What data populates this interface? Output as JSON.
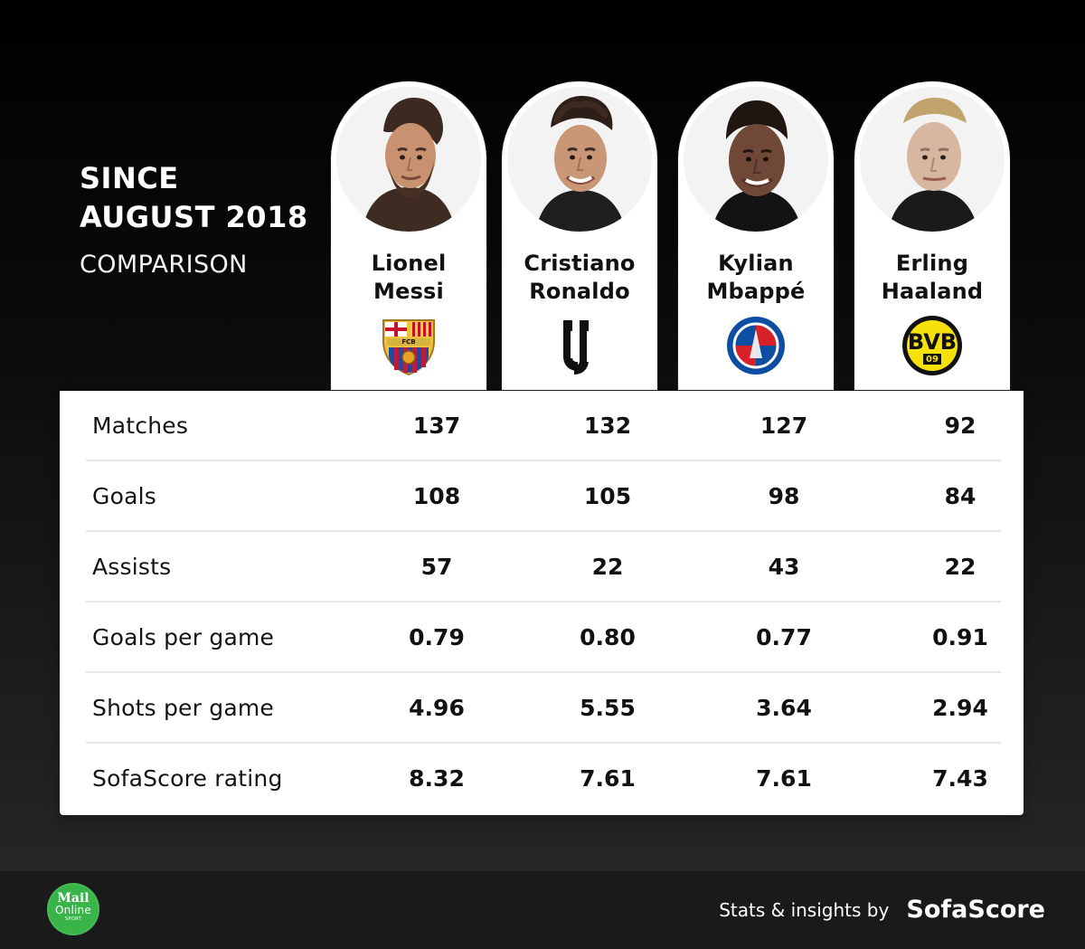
{
  "header": {
    "title_lines": [
      "SINCE",
      "AUGUST 2018"
    ],
    "subtitle": "COMPARISON"
  },
  "players": [
    {
      "name_lines": [
        "Lionel",
        "Messi"
      ],
      "portrait_icon": "lionel-messi-portrait-icon",
      "club_icon": "barcelona-crest-icon"
    },
    {
      "name_lines": [
        "Cristiano",
        "Ronaldo"
      ],
      "portrait_icon": "cristiano-ronaldo-portrait-icon",
      "club_icon": "juventus-crest-icon"
    },
    {
      "name_lines": [
        "Kylian",
        "Mbappé"
      ],
      "portrait_icon": "kylian-mbappe-portrait-icon",
      "club_icon": "psg-crest-icon"
    },
    {
      "name_lines": [
        "Erling",
        "Haaland"
      ],
      "portrait_icon": "erling-haaland-portrait-icon",
      "club_icon": "dortmund-crest-icon"
    }
  ],
  "chart_data": {
    "type": "table",
    "columns": [
      "Lionel Messi",
      "Cristiano Ronaldo",
      "Kylian Mbappé",
      "Erling Haaland"
    ],
    "rows": [
      {
        "label": "Matches",
        "values": [
          "137",
          "132",
          "127",
          "92"
        ]
      },
      {
        "label": "Goals",
        "values": [
          "108",
          "105",
          "98",
          "84"
        ]
      },
      {
        "label": "Assists",
        "values": [
          "57",
          "22",
          "43",
          "22"
        ]
      },
      {
        "label": "Goals per game",
        "values": [
          "0.79",
          "0.80",
          "0.77",
          "0.91"
        ]
      },
      {
        "label": "Shots per game",
        "values": [
          "4.96",
          "5.55",
          "3.64",
          "2.94"
        ]
      },
      {
        "label": "SofaScore rating",
        "values": [
          "8.32",
          "7.61",
          "7.61",
          "7.43"
        ]
      }
    ]
  },
  "footer": {
    "mail_logo": {
      "top": "Mail",
      "bottom": "Online",
      "sport": "SPORT"
    },
    "credit_text": "Stats & insights by",
    "brand_text": "SofaScore"
  },
  "colors": {
    "background_top": "#000000",
    "background_bottom": "#2a2a2a",
    "card": "#ffffff",
    "divider": "#e7e7e7",
    "mail_green": "#38b449",
    "barca_blue": "#1f4aa3",
    "barca_red": "#b61e3f",
    "psg_blue": "#0d4ea3",
    "psg_red": "#d82028",
    "bvb_yellow": "#f7e10c"
  }
}
